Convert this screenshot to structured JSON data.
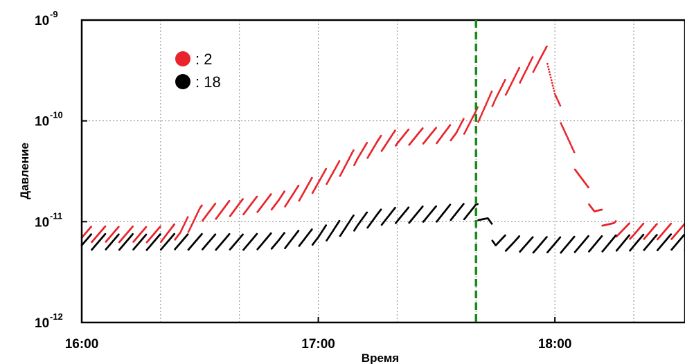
{
  "chart_data": {
    "type": "scatter",
    "xlabel": "Время",
    "ylabel": "Давление",
    "x_ticks": [
      "16:00",
      "17:00",
      "18:00"
    ],
    "x_range": [
      "16:00",
      "18:33"
    ],
    "y_scale": "log",
    "ylim": [
      1e-12,
      1e-09
    ],
    "y_ticks": [
      {
        "base": "10",
        "exp": "-12"
      },
      {
        "base": "10",
        "exp": "-11"
      },
      {
        "base": "10",
        "exp": "-10"
      },
      {
        "base": "10",
        "exp": "-9"
      }
    ],
    "grid": true,
    "legend_position": "top-left",
    "vline": {
      "x": "17:40",
      "color": "#1a8a1a",
      "style": "dashed"
    },
    "series": [
      {
        "name": ": 2",
        "color": "#e8232a",
        "points": [
          [
            "16:00",
            7.5e-12
          ],
          [
            "16:10",
            7.5e-12
          ],
          [
            "16:20",
            7.5e-12
          ],
          [
            "16:25",
            8e-12
          ],
          [
            "16:30",
            1.2e-11
          ],
          [
            "16:40",
            1.4e-11
          ],
          [
            "16:50",
            1.6e-11
          ],
          [
            "16:55",
            1.9e-11
          ],
          [
            "17:00",
            2.5e-11
          ],
          [
            "17:05",
            3.3e-11
          ],
          [
            "17:10",
            4.6e-11
          ],
          [
            "17:15",
            5.8e-11
          ],
          [
            "17:20",
            6.8e-11
          ],
          [
            "17:30",
            7.2e-11
          ],
          [
            "17:35",
            7.8e-11
          ],
          [
            "17:40",
            1.1e-10
          ],
          [
            "17:45",
            1.8e-10
          ],
          [
            "17:50",
            2.6e-10
          ],
          [
            "17:55",
            3.8e-10
          ],
          [
            "17:58",
            4.6e-10
          ],
          [
            "18:00",
            1.8e-10
          ],
          [
            "18:05",
            4e-11
          ],
          [
            "18:10",
            1.3e-11
          ],
          [
            "18:15",
            8.5e-12
          ],
          [
            "18:20",
            8e-12
          ],
          [
            "18:25",
            8e-12
          ],
          [
            "18:33",
            8e-12
          ]
        ]
      },
      {
        "name": ": 18",
        "color": "#000000",
        "points": [
          [
            "16:00",
            6.3e-12
          ],
          [
            "16:10",
            6.3e-12
          ],
          [
            "16:20",
            6.3e-12
          ],
          [
            "16:30",
            6.3e-12
          ],
          [
            "16:40",
            6.3e-12
          ],
          [
            "16:50",
            6.4e-12
          ],
          [
            "17:00",
            7.2e-12
          ],
          [
            "17:05",
            8.5e-12
          ],
          [
            "17:10",
            1e-11
          ],
          [
            "17:15",
            1.1e-11
          ],
          [
            "17:20",
            1.15e-11
          ],
          [
            "17:30",
            1.2e-11
          ],
          [
            "17:35",
            1.25e-11
          ],
          [
            "17:40",
            1.3e-11
          ],
          [
            "17:43",
            1e-11
          ],
          [
            "17:45",
            6.3e-12
          ],
          [
            "17:50",
            6e-12
          ],
          [
            "17:55",
            5.9e-12
          ],
          [
            "18:00",
            5.9e-12
          ],
          [
            "18:10",
            6e-12
          ],
          [
            "18:20",
            6.2e-12
          ],
          [
            "18:33",
            6.3e-12
          ]
        ]
      }
    ]
  }
}
